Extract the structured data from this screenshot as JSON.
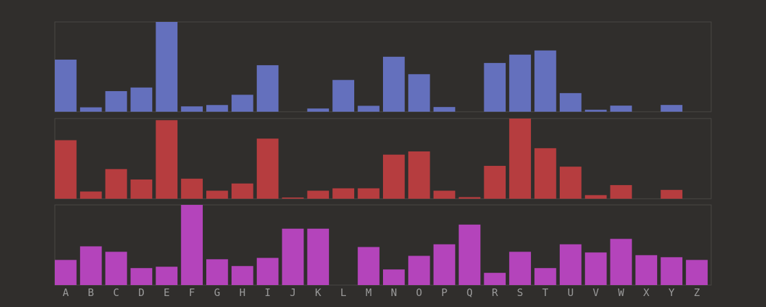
{
  "chart_data": {
    "type": "bar",
    "colors": [
      "#6470bd",
      "#b63d3f",
      "#b444bb"
    ],
    "background": "#302e2c",
    "grid": false,
    "legend": "none",
    "categories": [
      "A",
      "B",
      "C",
      "D",
      "E",
      "F",
      "G",
      "H",
      "I",
      "J",
      "K",
      "L",
      "M",
      "N",
      "O",
      "P",
      "Q",
      "R",
      "S",
      "T",
      "U",
      "V",
      "W",
      "X",
      "Y",
      "Z"
    ],
    "series": [
      {
        "values": [
          8.12,
          0.68,
          3.21,
          3.77,
          14.0,
          0.83,
          1.04,
          2.64,
          7.25,
          0,
          0.5,
          4.95,
          0.92,
          8.57,
          5.85,
          0.73,
          0,
          7.6,
          8.9,
          9.55,
          2.9,
          0.3,
          0.95,
          0,
          1.05,
          0
        ]
      },
      {
        "values": [
          7.3,
          0.9,
          3.7,
          2.4,
          9.8,
          2.5,
          1.0,
          1.9,
          7.5,
          0.15,
          1.0,
          1.3,
          1.3,
          5.5,
          5.9,
          1.0,
          0.2,
          4.1,
          10.0,
          6.3,
          4.0,
          0.45,
          1.7,
          0,
          1.1,
          0
        ]
      },
      {
        "values": [
          3.7,
          5.7,
          4.9,
          2.5,
          2.7,
          11.8,
          3.8,
          2.8,
          4.0,
          8.3,
          8.3,
          0,
          5.6,
          2.3,
          4.3,
          6.0,
          8.9,
          1.8,
          4.9,
          2.5,
          6.0,
          4.8,
          6.8,
          4.4,
          4.1,
          3.7
        ]
      }
    ]
  }
}
